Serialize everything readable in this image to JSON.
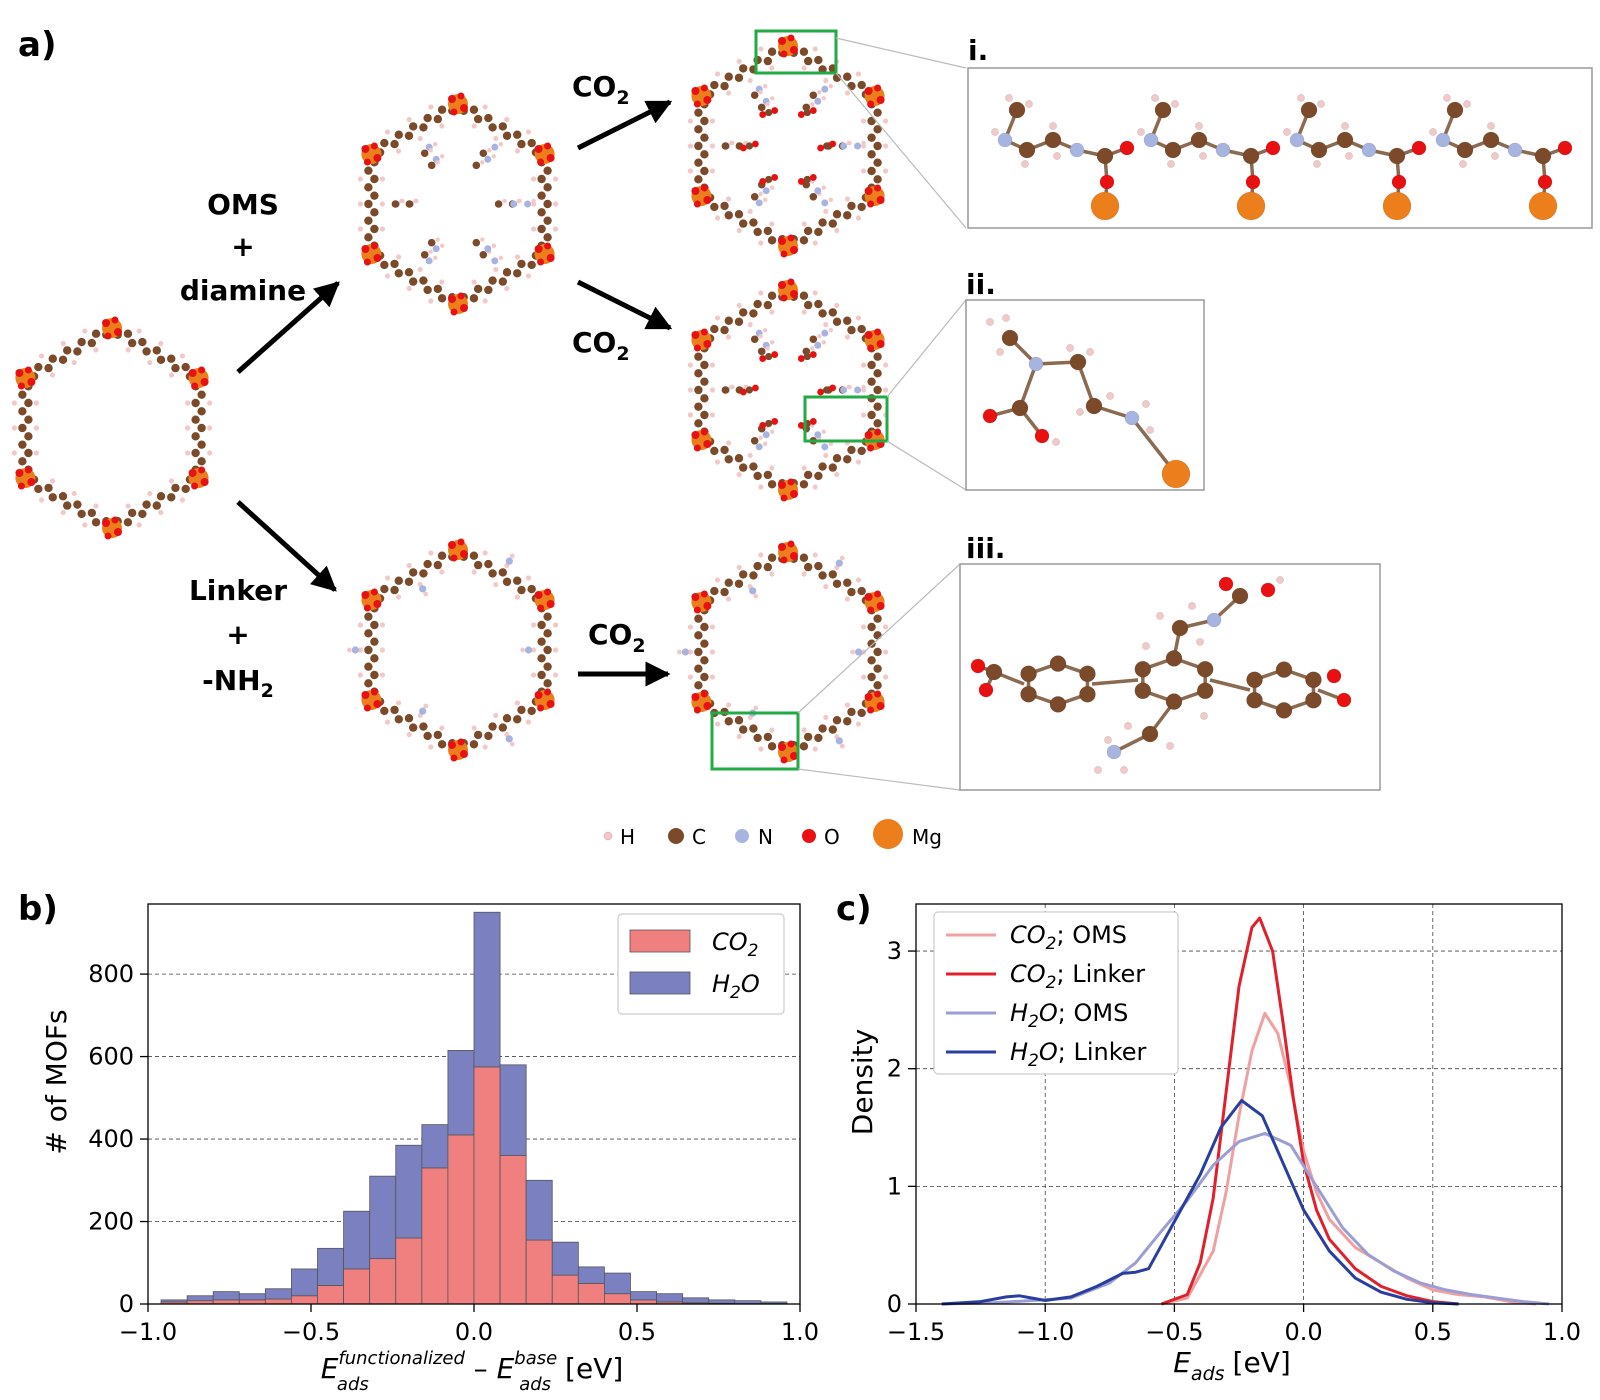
{
  "panel_a": {
    "label": "a)",
    "path_top": {
      "line1": "OMS",
      "line2": "+",
      "line3": "diamine"
    },
    "path_bottom": {
      "line1": "Linker",
      "line2": "+",
      "line3": "-NH",
      "line3_sub": "2"
    },
    "co2_label": "CO",
    "co2_sub": "2",
    "insets": [
      {
        "label": "i."
      },
      {
        "label": "ii."
      },
      {
        "label": "iii."
      }
    ],
    "atom_legend": [
      {
        "symbol": "H",
        "color": "#f2c9c9"
      },
      {
        "symbol": "C",
        "color": "#7a4a2a"
      },
      {
        "symbol": "N",
        "color": "#a8b4e0"
      },
      {
        "symbol": "O",
        "color": "#e81010"
      },
      {
        "symbol": "Mg",
        "color": "#ec7f1c"
      }
    ],
    "colors": {
      "linker": "#7a4a2a",
      "metal": "#ec7f1c",
      "oxygen": "#e81010",
      "nitrogen": "#a8b4e0",
      "hydrogen": "#f2c9c9",
      "highlight": "#22aa44"
    }
  },
  "chart_data": [
    {
      "panel": "b)",
      "type": "bar",
      "stacked": true,
      "xlabel_main": "E",
      "xlabel_sup1": "functionalized",
      "xlabel_sub1": "ads",
      "xlabel_sep": " – ",
      "xlabel_main2": "E",
      "xlabel_sup2": "base",
      "xlabel_sub2": "ads",
      "xlabel_unit": "[eV]",
      "ylabel": "# of MOFs",
      "xlim": [
        -1.0,
        1.0
      ],
      "ylim": [
        0,
        970
      ],
      "xticks": [
        -1.0,
        -0.5,
        0.0,
        0.5,
        1.0
      ],
      "xtick_labels": [
        "−1.0",
        "−0.5",
        "0.0",
        "0.5",
        "1.0"
      ],
      "yticks": [
        0,
        200,
        400,
        600,
        800
      ],
      "yticks_labels": [
        "0",
        "200",
        "400",
        "600",
        "800"
      ],
      "bin_width": 0.08,
      "bin_starts": [
        -0.96,
        -0.88,
        -0.8,
        -0.72,
        -0.64,
        -0.56,
        -0.48,
        -0.4,
        -0.32,
        -0.24,
        -0.16,
        -0.08,
        0.0,
        0.08,
        0.16,
        0.24,
        0.32,
        0.4,
        0.48,
        0.56,
        0.64,
        0.72,
        0.8,
        0.88
      ],
      "series": [
        {
          "name": "CO",
          "name_sub": "2",
          "color": "#f08080",
          "values": [
            5,
            8,
            10,
            10,
            12,
            20,
            45,
            85,
            110,
            160,
            330,
            410,
            575,
            360,
            155,
            70,
            50,
            25,
            10,
            5,
            3,
            2,
            1,
            1
          ]
        },
        {
          "name": "H",
          "name_sub": "2",
          "name_tail": "O",
          "color": "#7b80c0",
          "values": [
            5,
            12,
            20,
            15,
            25,
            65,
            90,
            140,
            200,
            225,
            105,
            205,
            375,
            220,
            145,
            80,
            40,
            50,
            20,
            20,
            12,
            8,
            7,
            4
          ]
        }
      ],
      "gridlines": "y",
      "legend_position": "top-right"
    },
    {
      "panel": "c)",
      "type": "line",
      "xlabel_main": "E",
      "xlabel_sub": "ads",
      "xlabel_unit": "[eV]",
      "ylabel": "Density",
      "xlim": [
        -1.5,
        1.0
      ],
      "ylim": [
        0,
        3.4
      ],
      "xticks": [
        -1.5,
        -1.0,
        -0.5,
        0.0,
        0.5,
        1.0
      ],
      "xtick_labels": [
        "−1.5",
        "−1.0",
        "−0.5",
        "0.0",
        "0.5",
        "1.0"
      ],
      "yticks": [
        0,
        1,
        2,
        3
      ],
      "ytick_labels": [
        "0",
        "1",
        "2",
        "3"
      ],
      "gridlines": "both",
      "legend_position": "top-left",
      "series": [
        {
          "name": "CO",
          "name_sub": "2",
          "tail": "; OMS",
          "color": "#f0a0a0",
          "x": [
            -0.55,
            -0.45,
            -0.35,
            -0.3,
            -0.25,
            -0.2,
            -0.15,
            -0.1,
            -0.05,
            0.0,
            0.05,
            0.1,
            0.2,
            0.3,
            0.4,
            0.5,
            0.6,
            0.7,
            0.8,
            0.9
          ],
          "y": [
            0,
            0.05,
            0.45,
            0.95,
            1.6,
            2.15,
            2.47,
            2.3,
            1.85,
            1.3,
            0.95,
            0.72,
            0.48,
            0.35,
            0.22,
            0.12,
            0.08,
            0.06,
            0.02,
            0
          ]
        },
        {
          "name": "CO",
          "name_sub": "2",
          "tail": "; Linker",
          "color": "#e0202a",
          "x": [
            -0.55,
            -0.45,
            -0.4,
            -0.35,
            -0.3,
            -0.25,
            -0.2,
            -0.17,
            -0.12,
            -0.08,
            -0.04,
            0.0,
            0.05,
            0.1,
            0.2,
            0.3,
            0.4,
            0.5,
            0.6
          ],
          "y": [
            0,
            0.08,
            0.35,
            0.9,
            1.8,
            2.7,
            3.2,
            3.28,
            3.0,
            2.4,
            1.75,
            1.2,
            0.8,
            0.55,
            0.3,
            0.15,
            0.07,
            0.02,
            0
          ]
        },
        {
          "name": "H",
          "name_sub": "2",
          "name_tail": "O",
          "tail": "; OMS",
          "color": "#9a9ed4",
          "x": [
            -1.4,
            -1.2,
            -1.05,
            -0.9,
            -0.75,
            -0.65,
            -0.55,
            -0.45,
            -0.35,
            -0.25,
            -0.15,
            -0.05,
            0.05,
            0.15,
            0.25,
            0.35,
            0.45,
            0.55,
            0.65,
            0.75,
            0.85,
            0.95
          ],
          "y": [
            0,
            0.01,
            0.03,
            0.05,
            0.18,
            0.35,
            0.62,
            0.88,
            1.18,
            1.38,
            1.45,
            1.35,
            1.0,
            0.65,
            0.42,
            0.28,
            0.18,
            0.12,
            0.08,
            0.05,
            0.02,
            0
          ]
        },
        {
          "name": "H",
          "name_sub": "2",
          "name_tail": "O",
          "tail": "; Linker",
          "color": "#2a3ea0",
          "x": [
            -1.4,
            -1.25,
            -1.15,
            -1.1,
            -1.05,
            -1.0,
            -0.9,
            -0.8,
            -0.7,
            -0.65,
            -0.6,
            -0.5,
            -0.4,
            -0.32,
            -0.24,
            -0.16,
            -0.08,
            0.0,
            0.1,
            0.2,
            0.3,
            0.4,
            0.5,
            0.6
          ],
          "y": [
            0,
            0.02,
            0.06,
            0.07,
            0.05,
            0.03,
            0.06,
            0.15,
            0.26,
            0.27,
            0.3,
            0.7,
            1.1,
            1.5,
            1.73,
            1.6,
            1.2,
            0.8,
            0.45,
            0.22,
            0.1,
            0.04,
            0.01,
            0
          ]
        }
      ]
    }
  ]
}
